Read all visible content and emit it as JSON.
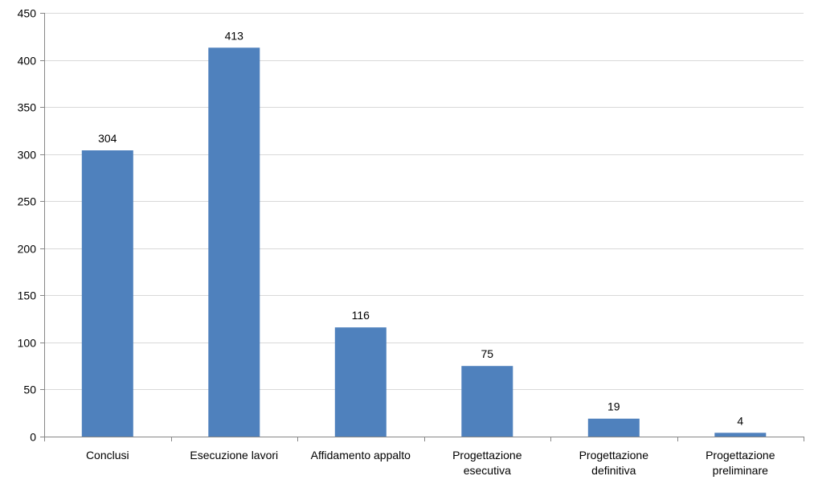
{
  "chart_data": {
    "type": "bar",
    "title": "",
    "xlabel": "",
    "ylabel": "",
    "categories": [
      [
        "Conclusi"
      ],
      [
        "Esecuzione lavori"
      ],
      [
        "Affidamento appalto"
      ],
      [
        "Progettazione",
        "esecutiva"
      ],
      [
        "Progettazione",
        "definitiva"
      ],
      [
        "Progettazione",
        "preliminare"
      ]
    ],
    "values": [
      304,
      413,
      116,
      75,
      19,
      4
    ],
    "data_labels": [
      "304",
      "413",
      "116",
      "75",
      "19",
      "4"
    ],
    "ylim": [
      0,
      450
    ],
    "yticks": [
      0,
      50,
      100,
      150,
      200,
      250,
      300,
      350,
      400,
      450
    ],
    "grid": true,
    "legend": "none",
    "colors": {
      "bar": "#4F81BD",
      "grid": "#D9D9D9",
      "axis": "#868686",
      "text": "#000000"
    }
  }
}
